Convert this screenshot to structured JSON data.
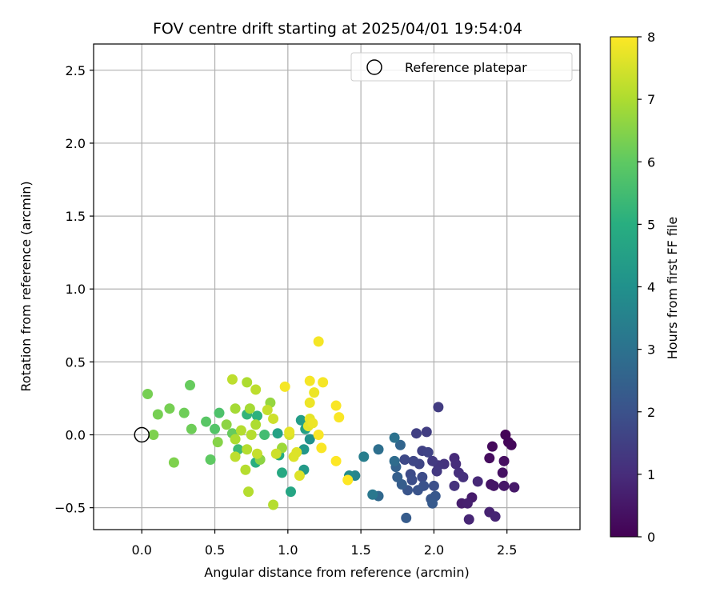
{
  "chart_data": {
    "type": "scatter",
    "title": "FOV centre drift starting at 2025/04/01 19:54:04",
    "xlabel": "Angular distance from reference (arcmin)",
    "ylabel": "Rotation from reference (arcmin)",
    "xlim": [
      -0.33,
      3.0
    ],
    "ylim": [
      -0.65,
      2.68
    ],
    "xticks": [
      0.0,
      0.5,
      1.0,
      1.5,
      2.0,
      2.5
    ],
    "xtick_labels": [
      "0.0",
      "0.5",
      "1.0",
      "1.5",
      "2.0",
      "2.5"
    ],
    "yticks": [
      -0.5,
      0.0,
      0.5,
      1.0,
      1.5,
      2.0,
      2.5
    ],
    "ytick_labels": [
      "−0.5",
      "0.0",
      "0.5",
      "1.0",
      "1.5",
      "2.0",
      "2.5"
    ],
    "grid": true,
    "legend": {
      "placement": "top-right",
      "entries": [
        {
          "label": "Reference platepar",
          "marker": "open-circle"
        }
      ]
    },
    "reference_point": {
      "x": 0.0,
      "y": 0.0,
      "label": "Reference platepar"
    },
    "colorbar": {
      "label": "Hours from first FF file",
      "colormap": "viridis",
      "range": [
        0,
        8
      ],
      "ticks": [
        0,
        1,
        2,
        3,
        4,
        5,
        6,
        7,
        8
      ],
      "tick_labels": [
        "0",
        "1",
        "2",
        "3",
        "4",
        "5",
        "6",
        "7",
        "8"
      ]
    },
    "points": [
      {
        "x": 2.49,
        "y": 0.0,
        "c": 0.05
      },
      {
        "x": 2.51,
        "y": -0.05,
        "c": 0.1
      },
      {
        "x": 2.53,
        "y": -0.07,
        "c": 0.15
      },
      {
        "x": 2.4,
        "y": -0.08,
        "c": 0.2
      },
      {
        "x": 2.38,
        "y": -0.16,
        "c": 0.25
      },
      {
        "x": 2.48,
        "y": -0.18,
        "c": 0.3
      },
      {
        "x": 2.47,
        "y": -0.26,
        "c": 0.35
      },
      {
        "x": 2.39,
        "y": -0.34,
        "c": 0.4
      },
      {
        "x": 2.41,
        "y": -0.35,
        "c": 0.45
      },
      {
        "x": 2.48,
        "y": -0.35,
        "c": 0.5
      },
      {
        "x": 2.55,
        "y": -0.36,
        "c": 0.55
      },
      {
        "x": 2.26,
        "y": -0.43,
        "c": 0.6
      },
      {
        "x": 2.19,
        "y": -0.47,
        "c": 0.65
      },
      {
        "x": 2.23,
        "y": -0.47,
        "c": 0.7
      },
      {
        "x": 2.38,
        "y": -0.53,
        "c": 0.75
      },
      {
        "x": 2.42,
        "y": -0.56,
        "c": 0.8
      },
      {
        "x": 2.24,
        "y": -0.58,
        "c": 0.85
      },
      {
        "x": 2.3,
        "y": -0.32,
        "c": 0.9
      },
      {
        "x": 2.14,
        "y": -0.16,
        "c": 0.95
      },
      {
        "x": 2.15,
        "y": -0.2,
        "c": 1.0
      },
      {
        "x": 2.17,
        "y": -0.26,
        "c": 1.05
      },
      {
        "x": 2.2,
        "y": -0.29,
        "c": 1.1
      },
      {
        "x": 2.14,
        "y": -0.35,
        "c": 1.15
      },
      {
        "x": 2.07,
        "y": -0.2,
        "c": 1.2
      },
      {
        "x": 2.03,
        "y": -0.21,
        "c": 1.25
      },
      {
        "x": 2.02,
        "y": -0.25,
        "c": 1.3
      },
      {
        "x": 1.99,
        "y": -0.18,
        "c": 1.35
      },
      {
        "x": 2.03,
        "y": 0.19,
        "c": 1.4
      },
      {
        "x": 1.95,
        "y": 0.02,
        "c": 1.45
      },
      {
        "x": 1.88,
        "y": 0.01,
        "c": 1.5
      },
      {
        "x": 1.92,
        "y": -0.11,
        "c": 1.55
      },
      {
        "x": 1.96,
        "y": -0.12,
        "c": 1.6
      },
      {
        "x": 1.9,
        "y": -0.2,
        "c": 1.65
      },
      {
        "x": 1.86,
        "y": -0.18,
        "c": 1.7
      },
      {
        "x": 1.8,
        "y": -0.17,
        "c": 1.75
      },
      {
        "x": 1.84,
        "y": -0.27,
        "c": 1.8
      },
      {
        "x": 1.92,
        "y": -0.29,
        "c": 1.85
      },
      {
        "x": 1.85,
        "y": -0.31,
        "c": 1.9
      },
      {
        "x": 2.0,
        "y": -0.35,
        "c": 1.95
      },
      {
        "x": 1.93,
        "y": -0.35,
        "c": 2.0
      },
      {
        "x": 1.89,
        "y": -0.38,
        "c": 2.05
      },
      {
        "x": 1.82,
        "y": -0.38,
        "c": 2.1
      },
      {
        "x": 1.98,
        "y": -0.44,
        "c": 2.15
      },
      {
        "x": 2.01,
        "y": -0.42,
        "c": 2.2
      },
      {
        "x": 1.99,
        "y": -0.47,
        "c": 2.25
      },
      {
        "x": 1.81,
        "y": -0.57,
        "c": 2.3
      },
      {
        "x": 1.78,
        "y": -0.34,
        "c": 2.35
      },
      {
        "x": 1.75,
        "y": -0.29,
        "c": 2.4
      },
      {
        "x": 1.74,
        "y": -0.22,
        "c": 2.5
      },
      {
        "x": 1.77,
        "y": -0.07,
        "c": 2.6
      },
      {
        "x": 1.62,
        "y": -0.42,
        "c": 2.7
      },
      {
        "x": 1.73,
        "y": -0.18,
        "c": 2.8
      },
      {
        "x": 1.62,
        "y": -0.1,
        "c": 2.9
      },
      {
        "x": 1.73,
        "y": -0.02,
        "c": 3.0
      },
      {
        "x": 1.58,
        "y": -0.41,
        "c": 3.2
      },
      {
        "x": 1.52,
        "y": -0.15,
        "c": 3.4
      },
      {
        "x": 1.46,
        "y": -0.28,
        "c": 3.6
      },
      {
        "x": 1.42,
        "y": -0.28,
        "c": 3.8
      },
      {
        "x": 1.15,
        "y": -0.03,
        "c": 4.0
      },
      {
        "x": 1.11,
        "y": -0.1,
        "c": 4.2
      },
      {
        "x": 1.11,
        "y": -0.24,
        "c": 4.3
      },
      {
        "x": 1.09,
        "y": 0.1,
        "c": 4.4
      },
      {
        "x": 1.12,
        "y": 0.04,
        "c": 4.5
      },
      {
        "x": 0.93,
        "y": 0.01,
        "c": 4.6
      },
      {
        "x": 1.02,
        "y": -0.39,
        "c": 4.7
      },
      {
        "x": 0.96,
        "y": -0.26,
        "c": 4.8
      },
      {
        "x": 0.94,
        "y": -0.14,
        "c": 4.9
      },
      {
        "x": 0.78,
        "y": -0.19,
        "c": 5.0
      },
      {
        "x": 0.79,
        "y": 0.13,
        "c": 5.1
      },
      {
        "x": 0.72,
        "y": 0.14,
        "c": 5.2
      },
      {
        "x": 0.66,
        "y": -0.1,
        "c": 5.4
      },
      {
        "x": 0.84,
        "y": 0.0,
        "c": 5.5
      },
      {
        "x": 0.53,
        "y": 0.15,
        "c": 5.7
      },
      {
        "x": 0.5,
        "y": 0.04,
        "c": 5.8
      },
      {
        "x": 0.44,
        "y": 0.09,
        "c": 5.9
      },
      {
        "x": 0.47,
        "y": -0.17,
        "c": 6.0
      },
      {
        "x": 0.62,
        "y": 0.01,
        "c": 6.1
      },
      {
        "x": 0.33,
        "y": 0.34,
        "c": 6.1
      },
      {
        "x": 0.34,
        "y": 0.04,
        "c": 6.2
      },
      {
        "x": 0.29,
        "y": 0.15,
        "c": 6.2
      },
      {
        "x": 0.19,
        "y": 0.18,
        "c": 6.3
      },
      {
        "x": 0.11,
        "y": 0.14,
        "c": 6.3
      },
      {
        "x": 0.04,
        "y": 0.28,
        "c": 6.3
      },
      {
        "x": 0.08,
        "y": 0.0,
        "c": 6.4
      },
      {
        "x": 0.22,
        "y": -0.19,
        "c": 6.4
      },
      {
        "x": 0.52,
        "y": -0.05,
        "c": 6.5
      },
      {
        "x": 0.58,
        "y": 0.07,
        "c": 6.6
      },
      {
        "x": 0.81,
        "y": -0.17,
        "c": 6.6
      },
      {
        "x": 0.88,
        "y": 0.22,
        "c": 6.7
      },
      {
        "x": 0.96,
        "y": -0.09,
        "c": 6.8
      },
      {
        "x": 0.64,
        "y": 0.18,
        "c": 6.9
      },
      {
        "x": 0.74,
        "y": 0.18,
        "c": 6.9
      },
      {
        "x": 0.78,
        "y": 0.07,
        "c": 7.0
      },
      {
        "x": 0.72,
        "y": 0.36,
        "c": 7.0
      },
      {
        "x": 0.64,
        "y": -0.03,
        "c": 7.0
      },
      {
        "x": 0.68,
        "y": 0.03,
        "c": 7.1
      },
      {
        "x": 0.72,
        "y": -0.1,
        "c": 7.1
      },
      {
        "x": 0.73,
        "y": -0.39,
        "c": 7.1
      },
      {
        "x": 0.9,
        "y": -0.48,
        "c": 7.1
      },
      {
        "x": 0.71,
        "y": -0.24,
        "c": 7.1
      },
      {
        "x": 0.75,
        "y": 0.0,
        "c": 7.1
      },
      {
        "x": 0.64,
        "y": -0.15,
        "c": 7.2
      },
      {
        "x": 0.62,
        "y": 0.38,
        "c": 7.2
      },
      {
        "x": 0.78,
        "y": 0.31,
        "c": 7.2
      },
      {
        "x": 0.86,
        "y": 0.17,
        "c": 7.3
      },
      {
        "x": 0.79,
        "y": -0.13,
        "c": 7.3
      },
      {
        "x": 0.9,
        "y": 0.11,
        "c": 7.4
      },
      {
        "x": 0.92,
        "y": -0.13,
        "c": 7.4
      },
      {
        "x": 1.01,
        "y": 0.0,
        "c": 7.5
      },
      {
        "x": 1.06,
        "y": -0.12,
        "c": 7.6
      },
      {
        "x": 1.04,
        "y": -0.15,
        "c": 7.6
      },
      {
        "x": 1.08,
        "y": -0.28,
        "c": 7.6
      },
      {
        "x": 1.01,
        "y": 0.02,
        "c": 7.7
      },
      {
        "x": 1.14,
        "y": 0.06,
        "c": 7.7
      },
      {
        "x": 1.15,
        "y": 0.11,
        "c": 7.7
      },
      {
        "x": 1.17,
        "y": 0.08,
        "c": 7.8
      },
      {
        "x": 1.15,
        "y": 0.22,
        "c": 7.8
      },
      {
        "x": 1.18,
        "y": 0.29,
        "c": 7.8
      },
      {
        "x": 1.15,
        "y": 0.37,
        "c": 7.9
      },
      {
        "x": 1.24,
        "y": 0.36,
        "c": 7.9
      },
      {
        "x": 1.21,
        "y": 0.64,
        "c": 7.9
      },
      {
        "x": 0.98,
        "y": 0.33,
        "c": 7.9
      },
      {
        "x": 1.21,
        "y": 0.0,
        "c": 7.95
      },
      {
        "x": 1.23,
        "y": -0.09,
        "c": 7.95
      },
      {
        "x": 1.33,
        "y": 0.2,
        "c": 7.95
      },
      {
        "x": 1.35,
        "y": 0.12,
        "c": 7.95
      },
      {
        "x": 1.33,
        "y": -0.18,
        "c": 8.0
      },
      {
        "x": 1.41,
        "y": -0.31,
        "c": 8.0
      }
    ]
  }
}
